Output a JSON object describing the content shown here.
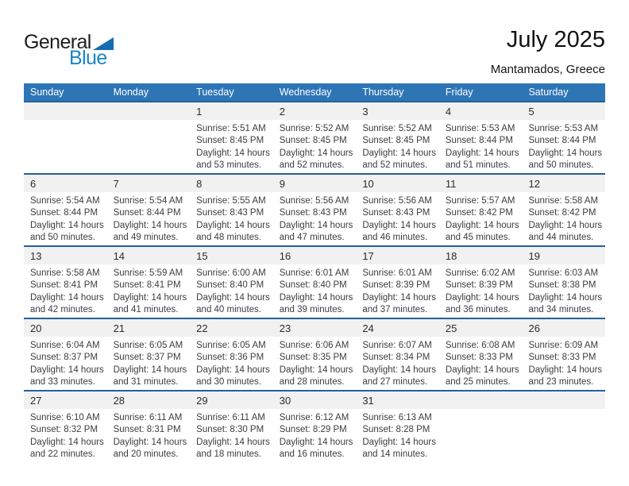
{
  "logo": {
    "word_top": "General",
    "word_bottom": "Blue"
  },
  "header": {
    "title": "July 2025",
    "location": "Mantamados, Greece"
  },
  "colors": {
    "weekday_header_bg": "#2E75B6",
    "week_row_border": "#24619B",
    "day_strip_bg": "#F1F1F1",
    "logo_blue_text": "#1b86c8",
    "logo_triangle": "#166cb0"
  },
  "calendar": {
    "weekdays": [
      "Sunday",
      "Monday",
      "Tuesday",
      "Wednesday",
      "Thursday",
      "Friday",
      "Saturday"
    ],
    "weeks": [
      [
        null,
        null,
        {
          "day": "1",
          "sunrise": "Sunrise: 5:51 AM",
          "sunset": "Sunset: 8:45 PM",
          "daylight1": "Daylight: 14 hours",
          "daylight2": "and 53 minutes."
        },
        {
          "day": "2",
          "sunrise": "Sunrise: 5:52 AM",
          "sunset": "Sunset: 8:45 PM",
          "daylight1": "Daylight: 14 hours",
          "daylight2": "and 52 minutes."
        },
        {
          "day": "3",
          "sunrise": "Sunrise: 5:52 AM",
          "sunset": "Sunset: 8:45 PM",
          "daylight1": "Daylight: 14 hours",
          "daylight2": "and 52 minutes."
        },
        {
          "day": "4",
          "sunrise": "Sunrise: 5:53 AM",
          "sunset": "Sunset: 8:44 PM",
          "daylight1": "Daylight: 14 hours",
          "daylight2": "and 51 minutes."
        },
        {
          "day": "5",
          "sunrise": "Sunrise: 5:53 AM",
          "sunset": "Sunset: 8:44 PM",
          "daylight1": "Daylight: 14 hours",
          "daylight2": "and 50 minutes."
        }
      ],
      [
        {
          "day": "6",
          "sunrise": "Sunrise: 5:54 AM",
          "sunset": "Sunset: 8:44 PM",
          "daylight1": "Daylight: 14 hours",
          "daylight2": "and 50 minutes."
        },
        {
          "day": "7",
          "sunrise": "Sunrise: 5:54 AM",
          "sunset": "Sunset: 8:44 PM",
          "daylight1": "Daylight: 14 hours",
          "daylight2": "and 49 minutes."
        },
        {
          "day": "8",
          "sunrise": "Sunrise: 5:55 AM",
          "sunset": "Sunset: 8:43 PM",
          "daylight1": "Daylight: 14 hours",
          "daylight2": "and 48 minutes."
        },
        {
          "day": "9",
          "sunrise": "Sunrise: 5:56 AM",
          "sunset": "Sunset: 8:43 PM",
          "daylight1": "Daylight: 14 hours",
          "daylight2": "and 47 minutes."
        },
        {
          "day": "10",
          "sunrise": "Sunrise: 5:56 AM",
          "sunset": "Sunset: 8:43 PM",
          "daylight1": "Daylight: 14 hours",
          "daylight2": "and 46 minutes."
        },
        {
          "day": "11",
          "sunrise": "Sunrise: 5:57 AM",
          "sunset": "Sunset: 8:42 PM",
          "daylight1": "Daylight: 14 hours",
          "daylight2": "and 45 minutes."
        },
        {
          "day": "12",
          "sunrise": "Sunrise: 5:58 AM",
          "sunset": "Sunset: 8:42 PM",
          "daylight1": "Daylight: 14 hours",
          "daylight2": "and 44 minutes."
        }
      ],
      [
        {
          "day": "13",
          "sunrise": "Sunrise: 5:58 AM",
          "sunset": "Sunset: 8:41 PM",
          "daylight1": "Daylight: 14 hours",
          "daylight2": "and 42 minutes."
        },
        {
          "day": "14",
          "sunrise": "Sunrise: 5:59 AM",
          "sunset": "Sunset: 8:41 PM",
          "daylight1": "Daylight: 14 hours",
          "daylight2": "and 41 minutes."
        },
        {
          "day": "15",
          "sunrise": "Sunrise: 6:00 AM",
          "sunset": "Sunset: 8:40 PM",
          "daylight1": "Daylight: 14 hours",
          "daylight2": "and 40 minutes."
        },
        {
          "day": "16",
          "sunrise": "Sunrise: 6:01 AM",
          "sunset": "Sunset: 8:40 PM",
          "daylight1": "Daylight: 14 hours",
          "daylight2": "and 39 minutes."
        },
        {
          "day": "17",
          "sunrise": "Sunrise: 6:01 AM",
          "sunset": "Sunset: 8:39 PM",
          "daylight1": "Daylight: 14 hours",
          "daylight2": "and 37 minutes."
        },
        {
          "day": "18",
          "sunrise": "Sunrise: 6:02 AM",
          "sunset": "Sunset: 8:39 PM",
          "daylight1": "Daylight: 14 hours",
          "daylight2": "and 36 minutes."
        },
        {
          "day": "19",
          "sunrise": "Sunrise: 6:03 AM",
          "sunset": "Sunset: 8:38 PM",
          "daylight1": "Daylight: 14 hours",
          "daylight2": "and 34 minutes."
        }
      ],
      [
        {
          "day": "20",
          "sunrise": "Sunrise: 6:04 AM",
          "sunset": "Sunset: 8:37 PM",
          "daylight1": "Daylight: 14 hours",
          "daylight2": "and 33 minutes."
        },
        {
          "day": "21",
          "sunrise": "Sunrise: 6:05 AM",
          "sunset": "Sunset: 8:37 PM",
          "daylight1": "Daylight: 14 hours",
          "daylight2": "and 31 minutes."
        },
        {
          "day": "22",
          "sunrise": "Sunrise: 6:05 AM",
          "sunset": "Sunset: 8:36 PM",
          "daylight1": "Daylight: 14 hours",
          "daylight2": "and 30 minutes."
        },
        {
          "day": "23",
          "sunrise": "Sunrise: 6:06 AM",
          "sunset": "Sunset: 8:35 PM",
          "daylight1": "Daylight: 14 hours",
          "daylight2": "and 28 minutes."
        },
        {
          "day": "24",
          "sunrise": "Sunrise: 6:07 AM",
          "sunset": "Sunset: 8:34 PM",
          "daylight1": "Daylight: 14 hours",
          "daylight2": "and 27 minutes."
        },
        {
          "day": "25",
          "sunrise": "Sunrise: 6:08 AM",
          "sunset": "Sunset: 8:33 PM",
          "daylight1": "Daylight: 14 hours",
          "daylight2": "and 25 minutes."
        },
        {
          "day": "26",
          "sunrise": "Sunrise: 6:09 AM",
          "sunset": "Sunset: 8:33 PM",
          "daylight1": "Daylight: 14 hours",
          "daylight2": "and 23 minutes."
        }
      ],
      [
        {
          "day": "27",
          "sunrise": "Sunrise: 6:10 AM",
          "sunset": "Sunset: 8:32 PM",
          "daylight1": "Daylight: 14 hours",
          "daylight2": "and 22 minutes."
        },
        {
          "day": "28",
          "sunrise": "Sunrise: 6:11 AM",
          "sunset": "Sunset: 8:31 PM",
          "daylight1": "Daylight: 14 hours",
          "daylight2": "and 20 minutes."
        },
        {
          "day": "29",
          "sunrise": "Sunrise: 6:11 AM",
          "sunset": "Sunset: 8:30 PM",
          "daylight1": "Daylight: 14 hours",
          "daylight2": "and 18 minutes."
        },
        {
          "day": "30",
          "sunrise": "Sunrise: 6:12 AM",
          "sunset": "Sunset: 8:29 PM",
          "daylight1": "Daylight: 14 hours",
          "daylight2": "and 16 minutes."
        },
        {
          "day": "31",
          "sunrise": "Sunrise: 6:13 AM",
          "sunset": "Sunset: 8:28 PM",
          "daylight1": "Daylight: 14 hours",
          "daylight2": "and 14 minutes."
        },
        null,
        null
      ]
    ]
  }
}
